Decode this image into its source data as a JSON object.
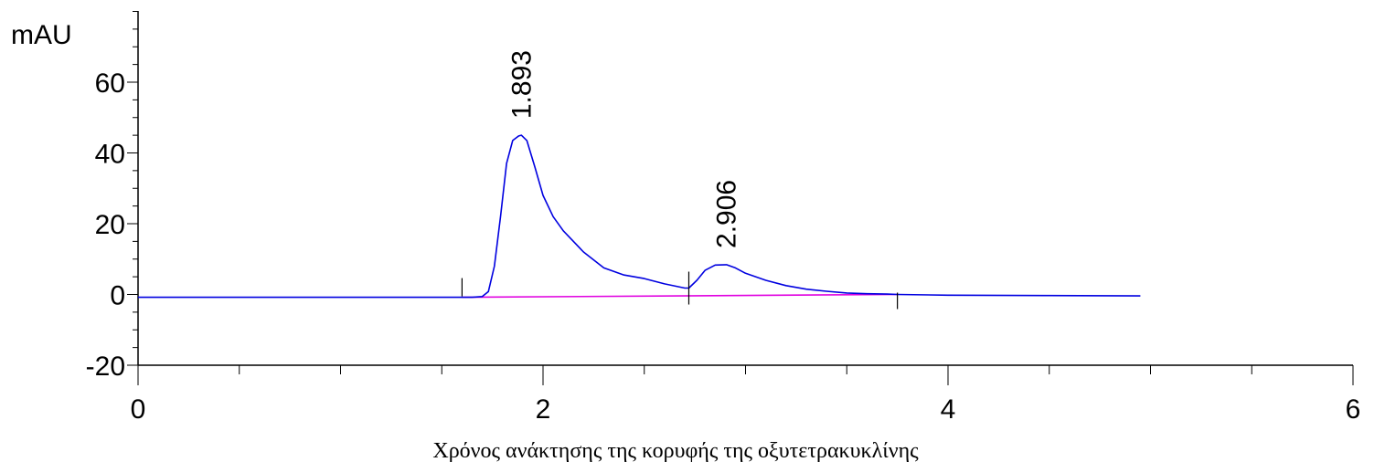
{
  "chart_data": {
    "type": "line",
    "title": "",
    "ylabel": "mAU",
    "xlabel": "Χρόνος ανάκτησης της κορυφής της οξυτετρακυκλίνης",
    "xlim": [
      0,
      6
    ],
    "ylim": [
      -20,
      80
    ],
    "x_ticks": [
      {
        "value": 0,
        "label": "0"
      },
      {
        "value": 2,
        "label": "2"
      },
      {
        "value": 4,
        "label": "4"
      },
      {
        "value": 6,
        "label": "6"
      }
    ],
    "y_ticks": [
      {
        "value": -20,
        "label": "-20"
      },
      {
        "value": 0,
        "label": "0"
      },
      {
        "value": 20,
        "label": "20"
      },
      {
        "value": 40,
        "label": "40"
      },
      {
        "value": 60,
        "label": "60"
      }
    ],
    "grid": false,
    "colors": {
      "signal": "#0000e0",
      "baseline": "#e000e0",
      "axis": "#000000"
    },
    "series": [
      {
        "x": [
          0,
          0.5,
          1.0,
          1.5,
          1.6,
          1.65,
          1.7,
          1.73,
          1.76,
          1.79,
          1.82,
          1.85,
          1.88,
          1.893,
          1.92,
          1.96,
          2.0,
          2.05,
          2.1,
          2.2,
          2.3,
          2.4,
          2.5,
          2.6,
          2.7,
          2.72,
          2.76,
          2.8,
          2.85,
          2.906,
          2.95,
          3.0,
          3.1,
          3.2,
          3.3,
          3.4,
          3.5,
          3.6,
          3.7,
          3.75,
          4.0,
          4.5,
          4.95
        ],
        "y": [
          -0.8,
          -0.8,
          -0.8,
          -0.8,
          -0.8,
          -0.8,
          -0.6,
          0.8,
          8.0,
          22.0,
          37.0,
          43.5,
          44.8,
          45.0,
          43.5,
          36.0,
          28.0,
          22.0,
          18.0,
          12.0,
          7.5,
          5.5,
          4.5,
          3.0,
          1.8,
          1.8,
          4.0,
          6.8,
          8.3,
          8.4,
          7.5,
          6.0,
          4.0,
          2.5,
          1.5,
          0.9,
          0.4,
          0.2,
          0.1,
          0.0,
          -0.2,
          -0.3,
          -0.4
        ]
      }
    ],
    "baseline": {
      "x": [
        1.6,
        3.75
      ],
      "y": [
        -0.8,
        0.0
      ]
    },
    "peaks": [
      {
        "rt": 1.893,
        "height": 45.0,
        "label": "1.893"
      },
      {
        "rt": 2.906,
        "height": 8.4,
        "label": "2.906"
      }
    ],
    "integration_marks": [
      {
        "x": 1.6,
        "y": 0.5,
        "dir": "up"
      },
      {
        "x": 2.72,
        "y": 1.8,
        "dir": "both"
      },
      {
        "x": 3.75,
        "y": 0.0,
        "dir": "down"
      }
    ]
  }
}
